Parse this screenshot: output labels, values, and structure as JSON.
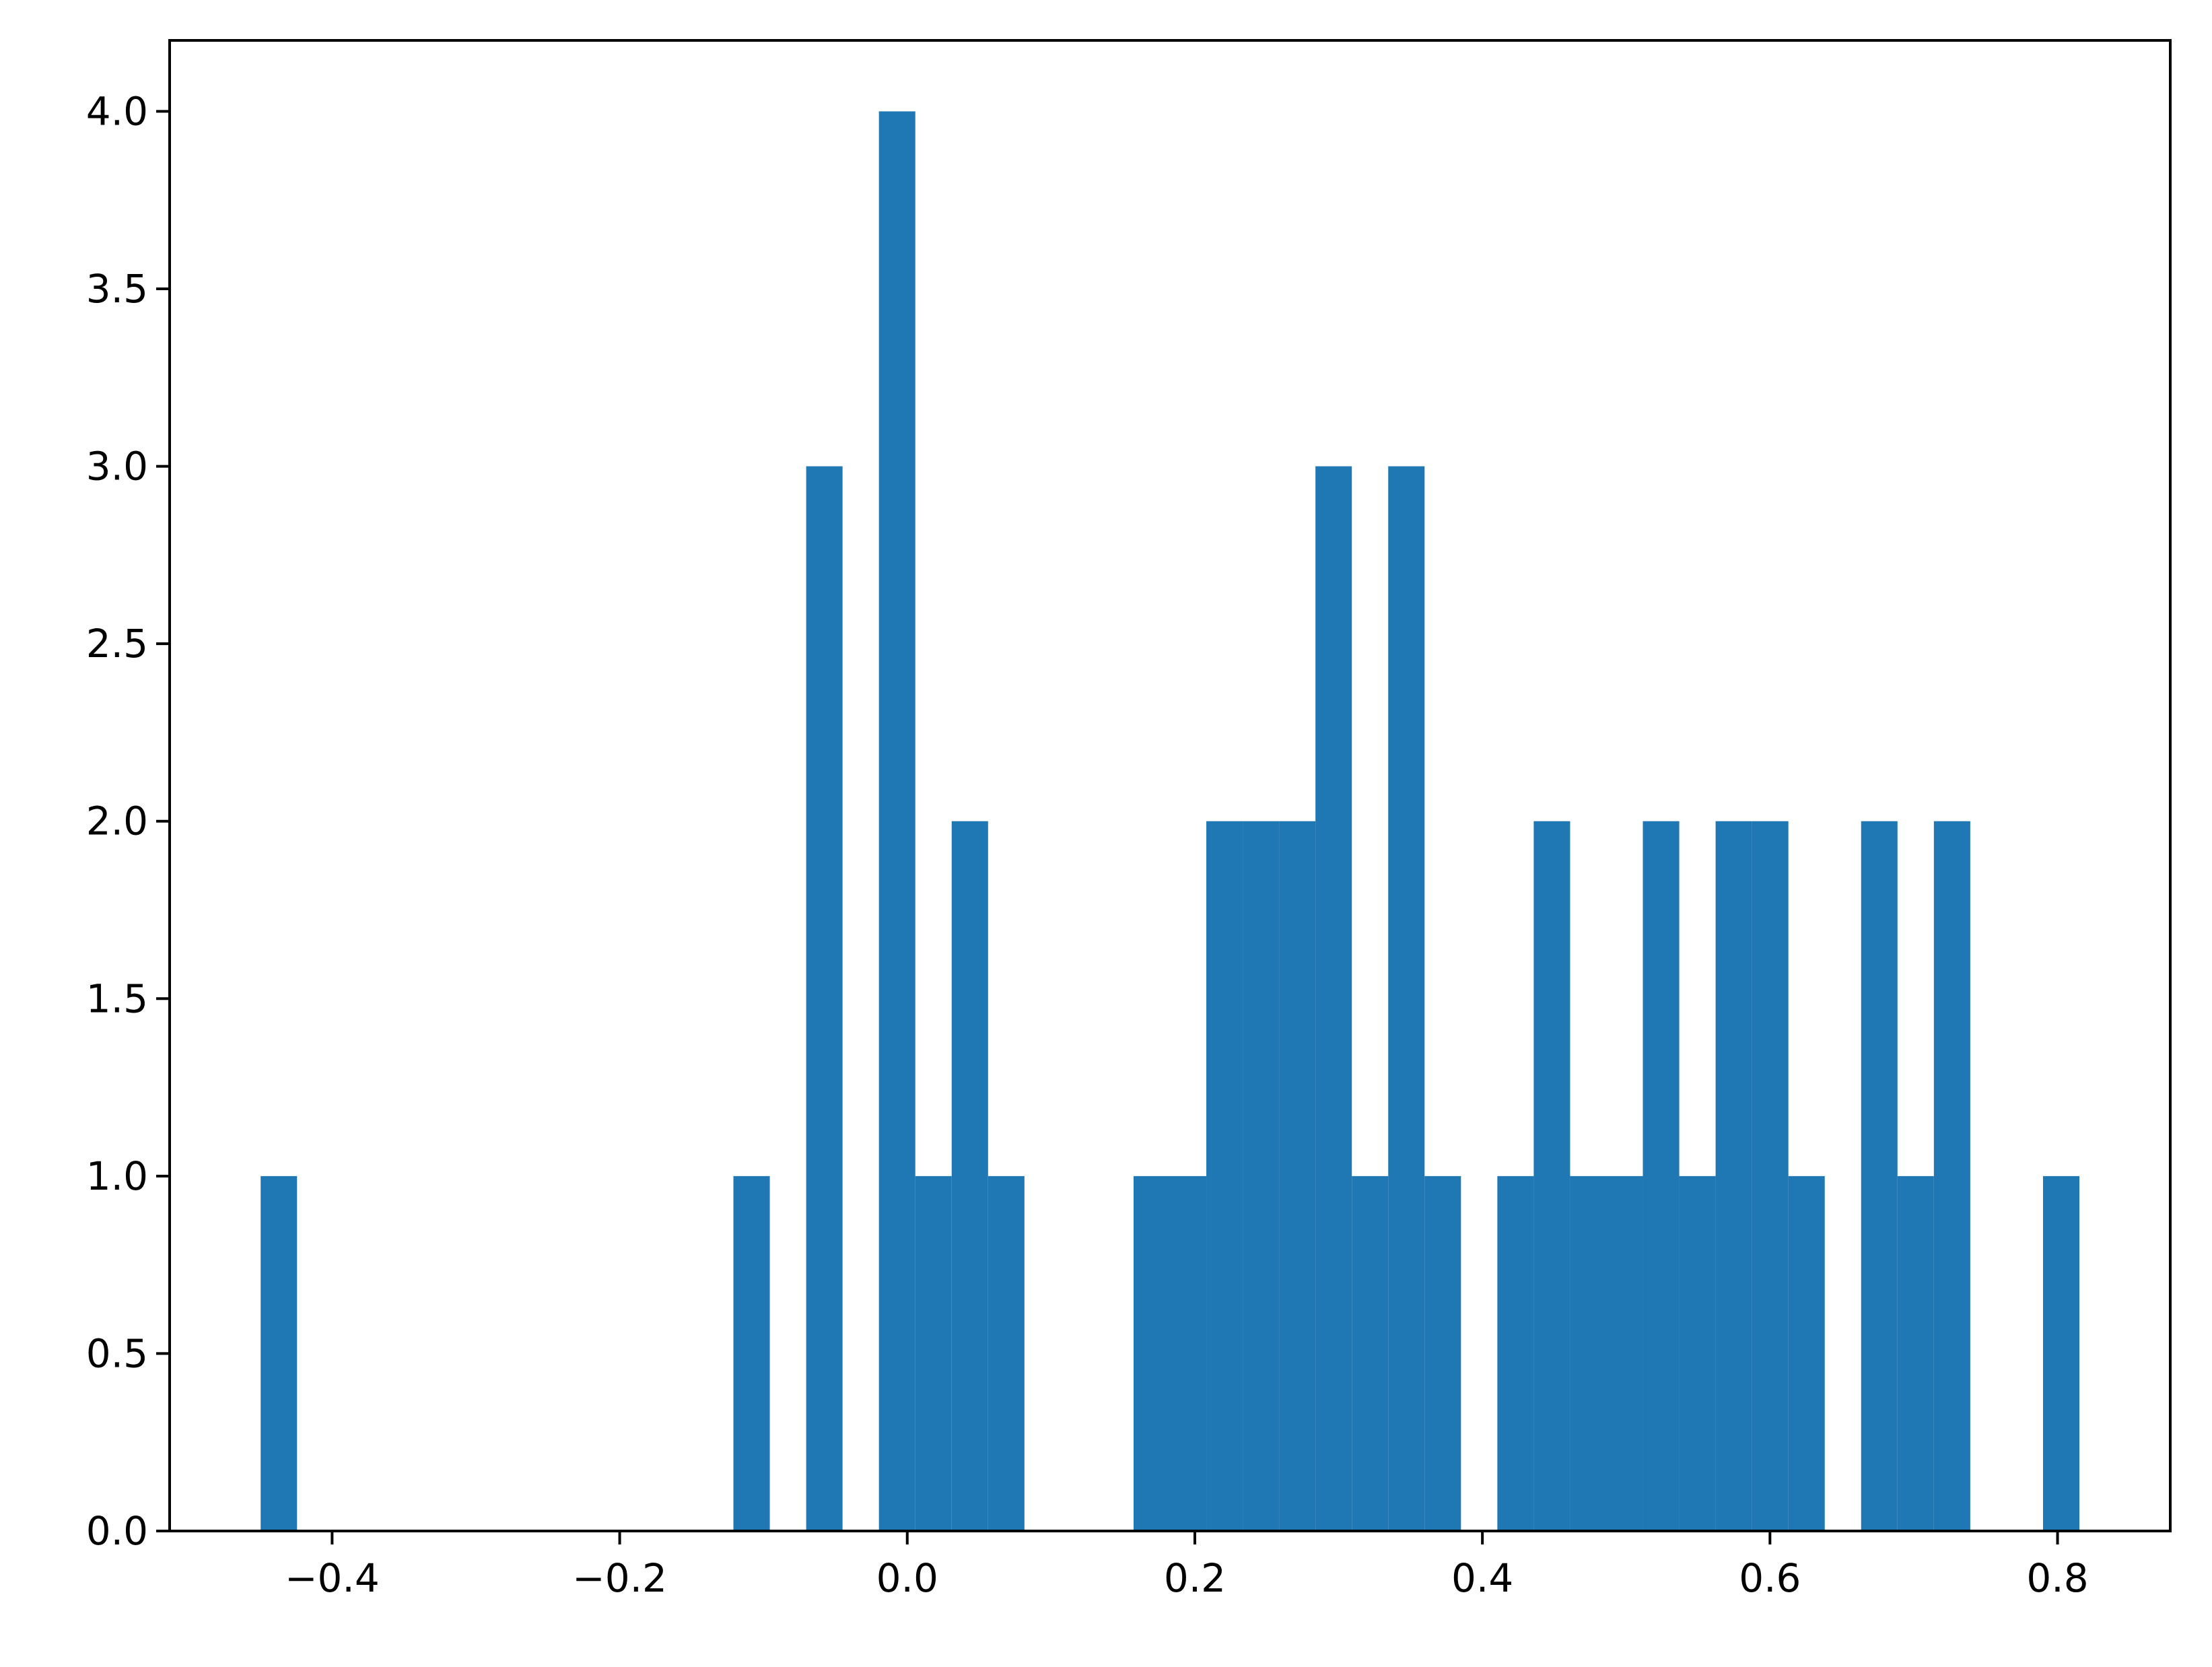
{
  "chart_data": {
    "type": "bar",
    "title": "",
    "xlabel": "",
    "ylabel": "",
    "xlim": [
      -0.513,
      0.8784
    ],
    "ylim": [
      0,
      4.2
    ],
    "bin_width": 0.0253,
    "grid": false,
    "legend": "none",
    "bar_color": "#1f77b4",
    "x_ticks": [
      -0.4,
      -0.2,
      0.0,
      0.2,
      0.4,
      0.6,
      0.8
    ],
    "x_tick_labels": [
      "−0.4",
      "−0.2",
      "0.0",
      "0.2",
      "0.4",
      "0.6",
      "0.8"
    ],
    "y_ticks": [
      0.0,
      0.5,
      1.0,
      1.5,
      2.0,
      2.5,
      3.0,
      3.5,
      4.0
    ],
    "y_tick_labels": [
      "0.0",
      "0.5",
      "1.0",
      "1.5",
      "2.0",
      "2.5",
      "3.0",
      "3.5",
      "4.0"
    ],
    "bins": [
      {
        "x0": -0.4497,
        "count": 1
      },
      {
        "x0": -0.1209,
        "count": 1
      },
      {
        "x0": -0.0703,
        "count": 3
      },
      {
        "x0": -0.0197,
        "count": 4
      },
      {
        "x0": 0.0056,
        "count": 1
      },
      {
        "x0": 0.0309,
        "count": 2
      },
      {
        "x0": 0.0562,
        "count": 1
      },
      {
        "x0": 0.1574,
        "count": 1
      },
      {
        "x0": 0.1827,
        "count": 1
      },
      {
        "x0": 0.208,
        "count": 2
      },
      {
        "x0": 0.2333,
        "count": 2
      },
      {
        "x0": 0.2586,
        "count": 2
      },
      {
        "x0": 0.2839,
        "count": 3
      },
      {
        "x0": 0.3092,
        "count": 1
      },
      {
        "x0": 0.3345,
        "count": 3
      },
      {
        "x0": 0.3598,
        "count": 1
      },
      {
        "x0": 0.4104,
        "count": 1
      },
      {
        "x0": 0.4357,
        "count": 2
      },
      {
        "x0": 0.461,
        "count": 1
      },
      {
        "x0": 0.4863,
        "count": 1
      },
      {
        "x0": 0.5116,
        "count": 2
      },
      {
        "x0": 0.5369,
        "count": 1
      },
      {
        "x0": 0.5622,
        "count": 2
      },
      {
        "x0": 0.5875,
        "count": 2
      },
      {
        "x0": 0.6128,
        "count": 1
      },
      {
        "x0": 0.6634,
        "count": 2
      },
      {
        "x0": 0.6887,
        "count": 1
      },
      {
        "x0": 0.714,
        "count": 2
      },
      {
        "x0": 0.7899,
        "count": 1
      }
    ]
  }
}
